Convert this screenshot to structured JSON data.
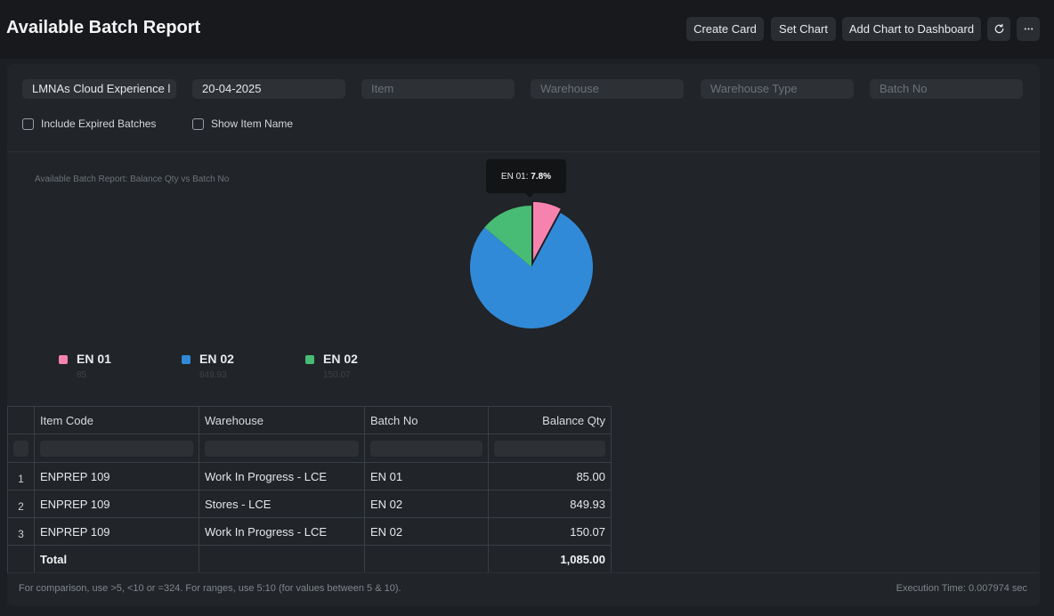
{
  "page": {
    "title": "Available Batch Report"
  },
  "header": {
    "create_card": "Create Card",
    "set_chart": "Set Chart",
    "add_to_dashboard": "Add Chart to Dashboard",
    "refresh_icon": "refresh-icon",
    "more_icon": "ellipsis-icon"
  },
  "filters": {
    "company": "LMNAs Cloud Experience l",
    "date": "20-04-2025",
    "item_placeholder": "Item",
    "warehouse_placeholder": "Warehouse",
    "warehouse_type_placeholder": "Warehouse Type",
    "batch_no_placeholder": "Batch No",
    "include_expired": "Include Expired Batches",
    "show_item_name": "Show Item Name"
  },
  "chart": {
    "title": "Available Batch Report: Balance Qty vs Batch No",
    "tooltip_label": "EN 01:",
    "tooltip_value": "7.8%",
    "legend": [
      {
        "label": "EN 01",
        "value": "85"
      },
      {
        "label": "EN 02",
        "value": "849.93"
      },
      {
        "label": "EN 02",
        "value": "150.07"
      }
    ]
  },
  "chart_data": {
    "type": "pie",
    "title": "Available Batch Report: Balance Qty vs Batch No",
    "categories": [
      "EN 01",
      "EN 02",
      "EN 02"
    ],
    "values": [
      85,
      849.93,
      150.07
    ],
    "colors": [
      "#f683ae",
      "#318ad8",
      "#48bb74"
    ],
    "highlighted": 0,
    "legend_position": "bottom-left"
  },
  "table": {
    "columns": [
      "Item Code",
      "Warehouse",
      "Batch No",
      "Balance Qty"
    ],
    "rows": [
      {
        "idx": "1",
        "item_code": "ENPREP 109",
        "warehouse": "Work In Progress - LCE",
        "batch_no": "EN 01",
        "qty": "85.00"
      },
      {
        "idx": "2",
        "item_code": "ENPREP 109",
        "warehouse": "Stores - LCE",
        "batch_no": "EN 02",
        "qty": "849.93"
      },
      {
        "idx": "3",
        "item_code": "ENPREP 109",
        "warehouse": "Work In Progress - LCE",
        "batch_no": "EN 02",
        "qty": "150.07"
      }
    ],
    "total_label": "Total",
    "total_qty": "1,085.00"
  },
  "footer": {
    "hint": "For comparison, use >5, <10 or =324. For ranges, use 5:10 (for values between 5 & 10).",
    "execution_time": "Execution Time: 0.007974 sec"
  }
}
